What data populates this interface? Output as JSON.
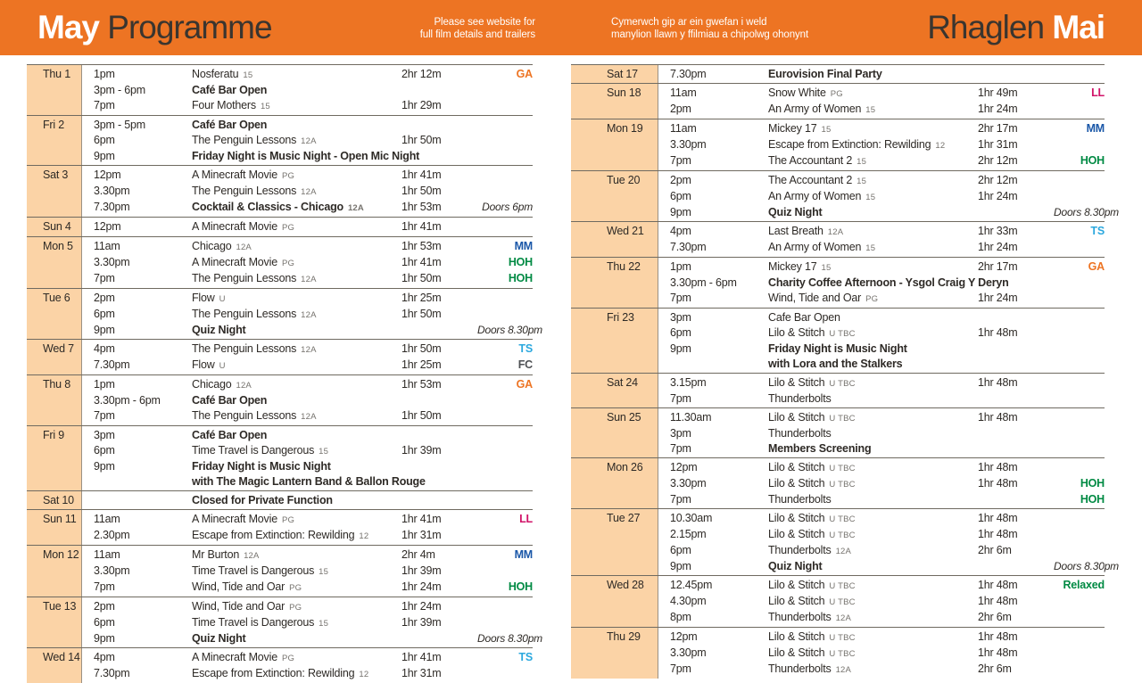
{
  "header": {
    "title_left_bold": "May",
    "title_left_rest": " Programme",
    "note_left_line1": "Please see website for",
    "note_left_line2": "full film details and trailers",
    "note_right_line1": "Cymerwch gip ar ein gwefan i weld",
    "note_right_line2": "manylion llawn y ffilmiau a chipolwg ohonynt",
    "title_right_rest": "Rhaglen ",
    "title_right_bold": "Mai"
  },
  "colors": {
    "accent_orange": "#ed7423",
    "peach": "#fbd3a6",
    "divider": "#6f6a60",
    "text": "#2e2a26",
    "cert_gray": "#76736e",
    "tag_colors": {
      "GA": "#ed7423",
      "MM": "#1a57a8",
      "HOH": "#008a43",
      "TS": "#2ba8de",
      "FC": "#4e5054",
      "LL": "#d11368",
      "Relaxed": "#008a43"
    }
  },
  "schedule": {
    "left_days": [
      {
        "date": "Thu 1",
        "rows": [
          {
            "time": "1pm",
            "title": "Nosferatu",
            "cert": "15",
            "duration": "2hr 12m",
            "tag": "GA"
          },
          {
            "time": "3pm - 6pm",
            "title": "Café Bar Open",
            "bold": true
          },
          {
            "time": "7pm",
            "title": "Four Mothers",
            "cert": "15",
            "duration": "1hr 29m"
          }
        ]
      },
      {
        "date": "Fri 2",
        "rows": [
          {
            "time": "3pm - 5pm",
            "title": "Café Bar Open",
            "bold": true
          },
          {
            "time": "6pm",
            "title": "The Penguin Lessons",
            "cert": "12A",
            "duration": "1hr 50m"
          },
          {
            "time": "9pm",
            "title": "Friday Night is Music Night - Open Mic Night",
            "bold": true
          }
        ]
      },
      {
        "date": "Sat 3",
        "rows": [
          {
            "time": "12pm",
            "title": "A Minecraft Movie",
            "cert": "PG",
            "duration": "1hr 41m"
          },
          {
            "time": "3.30pm",
            "title": "The Penguin Lessons",
            "cert": "12A",
            "duration": "1hr 50m"
          },
          {
            "time": "7.30pm",
            "title": "Cocktail & Classics - Chicago",
            "cert": "12A",
            "bold": true,
            "duration": "1hr 53m",
            "note": "Doors 6pm"
          }
        ]
      },
      {
        "date": "Sun 4",
        "rows": [
          {
            "time": "12pm",
            "title": "A Minecraft Movie",
            "cert": "PG",
            "duration": "1hr 41m"
          }
        ]
      },
      {
        "date": "Mon 5",
        "rows": [
          {
            "time": "11am",
            "title": "Chicago",
            "cert": "12A",
            "duration": "1hr 53m",
            "tag": "MM"
          },
          {
            "time": "3.30pm",
            "title": "A Minecraft Movie",
            "cert": "PG",
            "duration": "1hr 41m",
            "tag": "HOH"
          },
          {
            "time": "7pm",
            "title": "The Penguin Lessons",
            "cert": "12A",
            "duration": "1hr 50m",
            "tag": "HOH"
          }
        ]
      },
      {
        "date": "Tue 6",
        "rows": [
          {
            "time": "2pm",
            "title": "Flow",
            "cert": "U",
            "duration": "1hr 25m"
          },
          {
            "time": "6pm",
            "title": "The Penguin Lessons",
            "cert": "12A",
            "duration": "1hr 50m"
          },
          {
            "time": "9pm",
            "title": "Quiz Night",
            "bold": true,
            "note": "Doors 8.30pm"
          }
        ]
      },
      {
        "date": "Wed 7",
        "rows": [
          {
            "time": "4pm",
            "title": "The Penguin Lessons",
            "cert": "12A",
            "duration": "1hr 50m",
            "tag": "TS"
          },
          {
            "time": "7.30pm",
            "title": "Flow",
            "cert": "U",
            "duration": "1hr 25m",
            "tag": "FC"
          }
        ]
      },
      {
        "date": "Thu 8",
        "rows": [
          {
            "time": "1pm",
            "title": "Chicago",
            "cert": "12A",
            "duration": "1hr 53m",
            "tag": "GA"
          },
          {
            "time": "3.30pm - 6pm",
            "title": "Café Bar Open",
            "bold": true
          },
          {
            "time": "7pm",
            "title": "The Penguin Lessons",
            "cert": "12A",
            "duration": "1hr 50m"
          }
        ]
      },
      {
        "date": "Fri 9",
        "rows": [
          {
            "time": "3pm",
            "title": "Café Bar Open",
            "bold": true
          },
          {
            "time": "6pm",
            "title": "Time Travel is Dangerous",
            "cert": "15",
            "duration": "1hr 39m"
          },
          {
            "time": "9pm",
            "title": "Friday Night is Music Night",
            "bold": true
          },
          {
            "time": "",
            "title": "with The Magic Lantern Band & Ballon Rouge",
            "bold": true
          }
        ]
      },
      {
        "date": "Sat 10",
        "rows": [
          {
            "time": "",
            "title": "Closed for Private Function",
            "bold": true
          }
        ]
      },
      {
        "date": "Sun 11",
        "rows": [
          {
            "time": "11am",
            "title": "A Minecraft Movie",
            "cert": "PG",
            "duration": "1hr 41m",
            "tag": "LL"
          },
          {
            "time": "2.30pm",
            "title": "Escape from Extinction: Rewilding",
            "cert": "12",
            "duration": "1hr 31m"
          }
        ]
      },
      {
        "date": "Mon 12",
        "rows": [
          {
            "time": "11am",
            "title": "Mr Burton",
            "cert": "12A",
            "duration": "2hr 4m",
            "tag": "MM"
          },
          {
            "time": "3.30pm",
            "title": "Time Travel is Dangerous",
            "cert": "15",
            "duration": "1hr 39m"
          },
          {
            "time": "7pm",
            "title": "Wind, Tide and Oar",
            "cert": "PG",
            "duration": "1hr 24m",
            "tag": "HOH"
          }
        ]
      },
      {
        "date": "Tue 13",
        "rows": [
          {
            "time": "2pm",
            "title": "Wind, Tide and Oar",
            "cert": "PG",
            "duration": "1hr 24m"
          },
          {
            "time": "6pm",
            "title": "Time Travel is Dangerous",
            "cert": "15",
            "duration": "1hr 39m"
          },
          {
            "time": "9pm",
            "title": "Quiz Night",
            "bold": true,
            "note": "Doors 8.30pm"
          }
        ]
      },
      {
        "date": "Wed 14",
        "rows": [
          {
            "time": "4pm",
            "title": "A Minecraft Movie",
            "cert": "PG",
            "duration": "1hr 41m",
            "tag": "TS"
          },
          {
            "time": "7.30pm",
            "title": "Escape from Extinction: Rewilding",
            "cert": "12",
            "duration": "1hr 31m"
          }
        ]
      }
    ],
    "right_days": [
      {
        "date": "Sat 17",
        "rows": [
          {
            "time": "7.30pm",
            "title": "Eurovision Final Party",
            "bold": true
          }
        ]
      },
      {
        "date": "Sun 18",
        "rows": [
          {
            "time": "11am",
            "title": "Snow White",
            "cert": "PG",
            "duration": "1hr 49m",
            "tag": "LL"
          },
          {
            "time": "2pm",
            "title": "An Army of Women",
            "cert": "15",
            "duration": "1hr 24m"
          }
        ]
      },
      {
        "date": "Mon 19",
        "rows": [
          {
            "time": "11am",
            "title": "Mickey 17",
            "cert": "15",
            "duration": "2hr 17m",
            "tag": "MM"
          },
          {
            "time": "3.30pm",
            "title": "Escape from Extinction: Rewilding",
            "cert": "12",
            "duration": "1hr 31m"
          },
          {
            "time": "7pm",
            "title": "The Accountant 2",
            "cert": "15",
            "duration": "2hr 12m",
            "tag": "HOH"
          }
        ]
      },
      {
        "date": "Tue 20",
        "rows": [
          {
            "time": "2pm",
            "title": "The Accountant 2",
            "cert": "15",
            "duration": "2hr 12m"
          },
          {
            "time": "6pm",
            "title": "An Army of Women",
            "cert": "15",
            "duration": "1hr 24m"
          },
          {
            "time": "9pm",
            "title": "Quiz Night",
            "bold": true,
            "note": "Doors 8.30pm"
          }
        ]
      },
      {
        "date": "Wed 21",
        "rows": [
          {
            "time": "4pm",
            "title": "Last Breath",
            "cert": "12A",
            "duration": "1hr 33m",
            "tag": "TS"
          },
          {
            "time": "7.30pm",
            "title": "An Army of Women",
            "cert": "15",
            "duration": "1hr 24m"
          }
        ]
      },
      {
        "date": "Thu 22",
        "rows": [
          {
            "time": "1pm",
            "title": "Mickey 17",
            "cert": "15",
            "duration": "2hr 17m",
            "tag": "GA"
          },
          {
            "time": "3.30pm - 6pm",
            "title": "Charity Coffee Afternoon - Ysgol Craig Y Deryn",
            "bold": true
          },
          {
            "time": "7pm",
            "title": "Wind, Tide and Oar",
            "cert": "PG",
            "duration": "1hr 24m"
          }
        ]
      },
      {
        "date": "Fri 23",
        "rows": [
          {
            "time": "3pm",
            "title": "Cafe Bar Open"
          },
          {
            "time": "6pm",
            "title": "Lilo & Stitch",
            "cert": "U TBC",
            "duration": "1hr 48m"
          },
          {
            "time": "9pm",
            "title": "Friday Night is Music Night",
            "bold": true
          },
          {
            "time": "",
            "title": "with Lora and the Stalkers",
            "bold": true
          }
        ]
      },
      {
        "date": "Sat 24",
        "rows": [
          {
            "time": "3.15pm",
            "title": "Lilo & Stitch",
            "cert": "U TBC",
            "duration": "1hr 48m"
          },
          {
            "time": "7pm",
            "title": "Thunderbolts"
          }
        ]
      },
      {
        "date": "Sun 25",
        "rows": [
          {
            "time": "11.30am",
            "title": "Lilo & Stitch",
            "cert": "U TBC",
            "duration": "1hr 48m"
          },
          {
            "time": "3pm",
            "title": "Thunderbolts"
          },
          {
            "time": "7pm",
            "title": "Members Screening",
            "bold": true
          }
        ]
      },
      {
        "date": "Mon 26",
        "rows": [
          {
            "time": "12pm",
            "title": "Lilo & Stitch",
            "cert": "U TBC",
            "duration": "1hr 48m"
          },
          {
            "time": "3.30pm",
            "title": "Lilo & Stitch",
            "cert": "U TBC",
            "duration": "1hr 48m",
            "tag": "HOH"
          },
          {
            "time": "7pm",
            "title": "Thunderbolts",
            "tag": "HOH"
          }
        ]
      },
      {
        "date": "Tue 27",
        "rows": [
          {
            "time": "10.30am",
            "title": "Lilo & Stitch",
            "cert": "U TBC",
            "duration": "1hr 48m"
          },
          {
            "time": "2.15pm",
            "title": "Lilo & Stitch",
            "cert": "U TBC",
            "duration": "1hr 48m"
          },
          {
            "time": "6pm",
            "title": "Thunderbolts",
            "cert": "12A",
            "duration": "2hr 6m"
          },
          {
            "time": "9pm",
            "title": "Quiz Night",
            "bold": true,
            "note": "Doors 8.30pm"
          }
        ]
      },
      {
        "date": "Wed 28",
        "rows": [
          {
            "time": "12.45pm",
            "title": "Lilo & Stitch",
            "cert": "U TBC",
            "duration": "1hr 48m",
            "tag": "Relaxed"
          },
          {
            "time": "4.30pm",
            "title": "Lilo & Stitch",
            "cert": "U TBC",
            "duration": "1hr 48m"
          },
          {
            "time": "8pm",
            "title": "Thunderbolts",
            "cert": "12A",
            "duration": "2hr 6m"
          }
        ]
      },
      {
        "date": "Thu 29",
        "rows": [
          {
            "time": "12pm",
            "title": "Lilo & Stitch",
            "cert": "U TBC",
            "duration": "1hr 48m"
          },
          {
            "time": "3.30pm",
            "title": "Lilo & Stitch",
            "cert": "U TBC",
            "duration": "1hr 48m"
          },
          {
            "time": "7pm",
            "title": "Thunderbolts",
            "cert": "12A",
            "duration": "2hr 6m"
          }
        ]
      }
    ]
  }
}
